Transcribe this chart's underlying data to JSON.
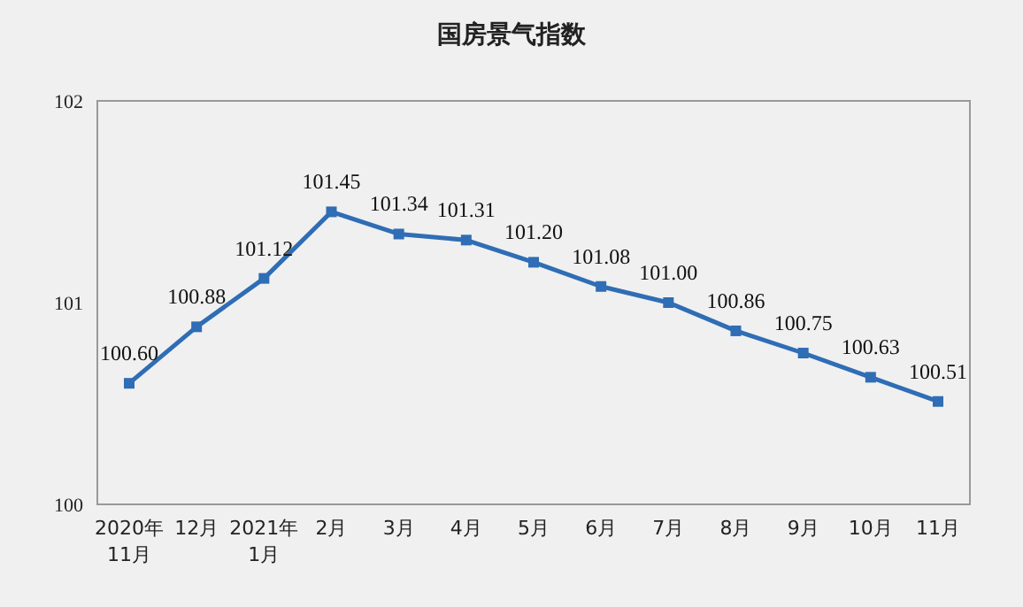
{
  "chart_data": {
    "type": "line",
    "title": "国房景气指数",
    "categories": [
      "2020年\n11月",
      "12月",
      "2021年\n1月",
      "2月",
      "3月",
      "4月",
      "5月",
      "6月",
      "7月",
      "8月",
      "9月",
      "10月",
      "11月"
    ],
    "values": [
      100.6,
      100.88,
      101.12,
      101.45,
      101.34,
      101.31,
      101.2,
      101.08,
      101.0,
      100.86,
      100.75,
      100.63,
      100.51
    ],
    "value_labels": [
      "100.60",
      "100.88",
      "101.12",
      "101.45",
      "101.34",
      "101.31",
      "101.20",
      "101.08",
      "101.00",
      "100.86",
      "100.75",
      "100.63",
      "100.51"
    ],
    "color": "#2f6db5",
    "ylim": [
      100,
      102
    ],
    "yticks": [
      100,
      101,
      102
    ],
    "marker": "square",
    "line_style": "solid"
  }
}
